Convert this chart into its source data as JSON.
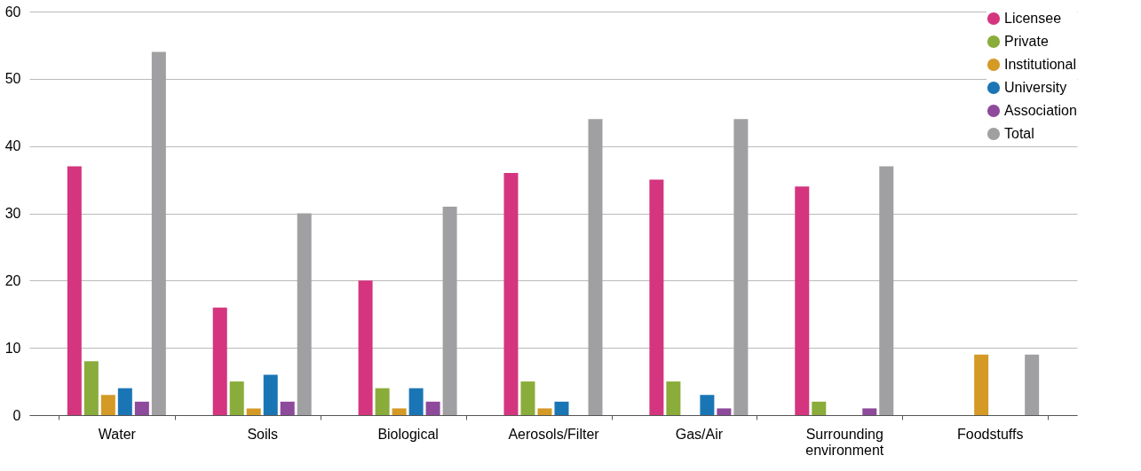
{
  "chart_data": {
    "type": "bar",
    "categories": [
      "Water",
      "Soils",
      "Biological",
      "Aerosols/Filter",
      "Gas/Air",
      "Surrounding environment",
      "Foodstuffs"
    ],
    "series": [
      {
        "name": "Licensee",
        "color": "#d4357e",
        "values": [
          37,
          16,
          20,
          36,
          35,
          34,
          null
        ]
      },
      {
        "name": "Private",
        "color": "#8aac3a",
        "values": [
          8,
          5,
          4,
          5,
          5,
          2,
          null
        ]
      },
      {
        "name": "Institutional",
        "color": "#d49a25",
        "values": [
          3,
          1,
          1,
          1,
          null,
          null,
          9
        ]
      },
      {
        "name": "University",
        "color": "#1a75b5",
        "values": [
          4,
          6,
          4,
          2,
          3,
          null,
          null
        ]
      },
      {
        "name": "Association",
        "color": "#8e4a9b",
        "values": [
          2,
          2,
          2,
          null,
          1,
          1,
          null
        ]
      },
      {
        "name": "Total",
        "color": "#a0a0a2",
        "values": [
          54,
          30,
          31,
          44,
          44,
          37,
          9
        ]
      }
    ],
    "ylim": [
      0,
      60
    ],
    "yticks": [
      0,
      10,
      20,
      30,
      40,
      50,
      60
    ],
    "grid": "y",
    "legend": "top right"
  }
}
